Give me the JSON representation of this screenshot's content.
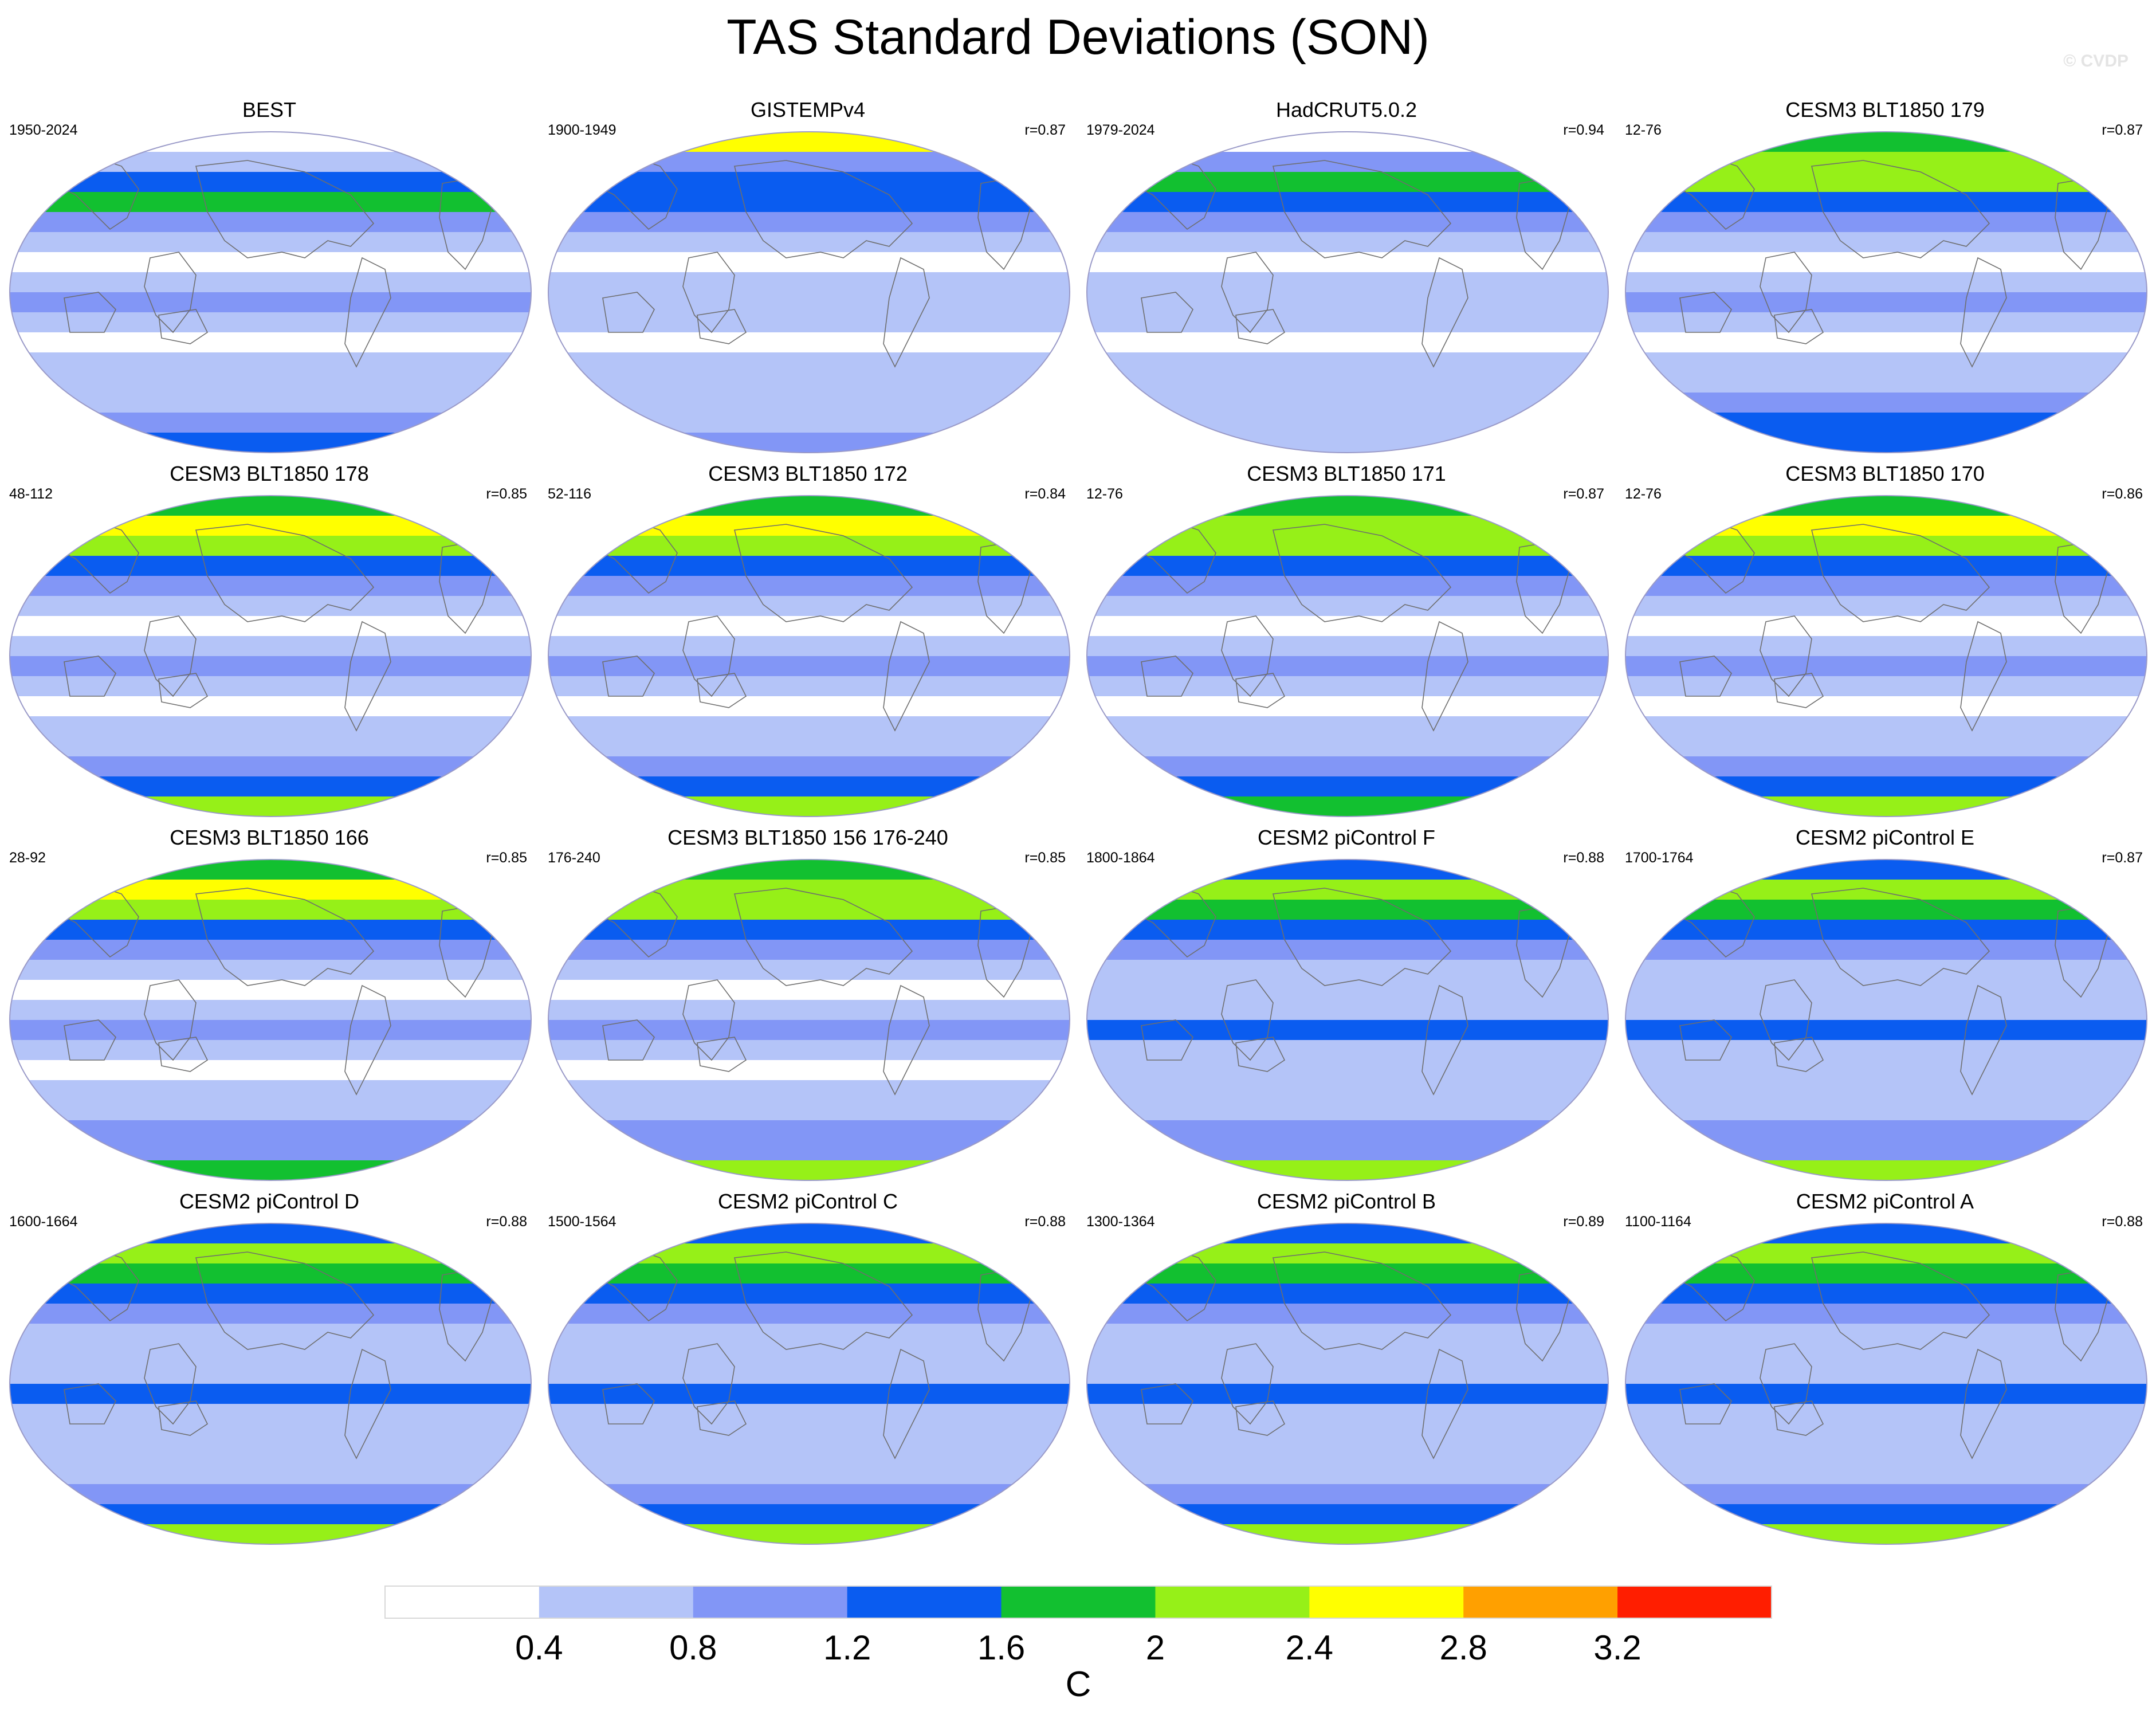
{
  "title": "TAS Standard Deviations (SON)",
  "watermark": "© CVDP",
  "colorbar": {
    "unit": "C",
    "ticks": [
      "0.4",
      "0.8",
      "1.2",
      "1.6",
      "2",
      "2.4",
      "2.8",
      "3.2"
    ],
    "colors": [
      "#ffffff",
      "#b4c4f8",
      "#8296f6",
      "#0a5cf0",
      "#12c030",
      "#96f018",
      "#ffff00",
      "#ffa000",
      "#ff1e00"
    ]
  },
  "continent_outline_color": "#6e6e6e",
  "panels": [
    {
      "title": "BEST",
      "period": "1950-2024",
      "correlation": "",
      "profile": [
        0.2,
        0.7,
        1.4,
        1.9,
        1.1,
        0.6,
        0.3,
        0.5,
        0.8,
        0.6,
        0.3,
        0.4,
        0.4,
        0.7,
        1.0,
        1.3
      ]
    },
    {
      "title": "GISTEMPv4",
      "period": "1900-1949",
      "correlation": "r=0.87",
      "profile": [
        2.6,
        1.1,
        1.3,
        1.3,
        0.9,
        0.5,
        0.3,
        0.5,
        0.7,
        0.5,
        0.3,
        0.4,
        0.4,
        0.5,
        0.6,
        1.2
      ]
    },
    {
      "title": "HadCRUT5.0.2",
      "period": "1979-2024",
      "correlation": "r=0.94",
      "profile": [
        0.3,
        1.0,
        1.6,
        1.4,
        1.0,
        0.6,
        0.3,
        0.5,
        0.7,
        0.5,
        0.3,
        0.4,
        0.4,
        0.5,
        0.5,
        0.4
      ]
    },
    {
      "title": "CESM3 BLT1850 179",
      "period": "12-76",
      "correlation": "r=0.87",
      "profile": [
        1.6,
        2.3,
        2.0,
        1.5,
        1.1,
        0.6,
        0.3,
        0.5,
        1.0,
        0.6,
        0.3,
        0.4,
        0.5,
        0.9,
        1.3,
        1.4
      ]
    },
    {
      "title": "CESM3 BLT1850 178",
      "period": "48-112",
      "correlation": "r=0.85",
      "profile": [
        1.7,
        2.5,
        2.1,
        1.5,
        1.1,
        0.6,
        0.3,
        0.5,
        1.0,
        0.6,
        0.3,
        0.4,
        0.6,
        0.9,
        1.3,
        2.0
      ]
    },
    {
      "title": "CESM3 BLT1850 172",
      "period": "52-116",
      "correlation": "r=0.84",
      "profile": [
        1.7,
        2.6,
        2.1,
        1.5,
        1.1,
        0.6,
        0.3,
        0.5,
        1.0,
        0.6,
        0.3,
        0.4,
        0.6,
        0.9,
        1.3,
        2.2
      ]
    },
    {
      "title": "CESM3 BLT1850 171",
      "period": "12-76",
      "correlation": "r=0.87",
      "profile": [
        1.7,
        2.4,
        2.1,
        1.5,
        1.1,
        0.6,
        0.3,
        0.5,
        1.0,
        0.6,
        0.3,
        0.4,
        0.6,
        0.9,
        1.3,
        1.9
      ]
    },
    {
      "title": "CESM3 BLT1850 170",
      "period": "12-76",
      "correlation": "r=0.86",
      "profile": [
        1.8,
        2.5,
        2.1,
        1.5,
        1.1,
        0.6,
        0.3,
        0.5,
        1.0,
        0.6,
        0.3,
        0.4,
        0.6,
        0.9,
        1.3,
        2.1
      ]
    },
    {
      "title": "CESM3 BLT1850 166",
      "period": "28-92",
      "correlation": "r=0.85",
      "profile": [
        1.7,
        2.6,
        2.0,
        1.5,
        1.1,
        0.6,
        0.3,
        0.5,
        1.0,
        0.6,
        0.3,
        0.4,
        0.5,
        0.9,
        1.1,
        1.9
      ]
    },
    {
      "title": "CESM3 BLT1850 156 176-240",
      "period": "176-240",
      "correlation": "r=0.85",
      "profile": [
        1.7,
        2.4,
        2.0,
        1.5,
        1.1,
        0.6,
        0.3,
        0.5,
        1.0,
        0.6,
        0.3,
        0.4,
        0.5,
        0.9,
        1.1,
        2.0
      ]
    },
    {
      "title": "CESM2 piControl F",
      "period": "1800-1864",
      "correlation": "r=0.88",
      "profile": [
        1.5,
        2.2,
        1.9,
        1.4,
        1.0,
        0.6,
        0.4,
        0.6,
        1.3,
        0.7,
        0.4,
        0.4,
        0.5,
        0.8,
        1.1,
        2.0
      ]
    },
    {
      "title": "CESM2 piControl E",
      "period": "1700-1764",
      "correlation": "r=0.87",
      "profile": [
        1.5,
        2.2,
        1.9,
        1.4,
        1.0,
        0.6,
        0.4,
        0.6,
        1.3,
        0.7,
        0.4,
        0.4,
        0.5,
        0.8,
        1.1,
        2.0
      ]
    },
    {
      "title": "CESM2 piControl D",
      "period": "1600-1664",
      "correlation": "r=0.88",
      "profile": [
        1.5,
        2.3,
        1.9,
        1.4,
        1.0,
        0.6,
        0.4,
        0.6,
        1.3,
        0.7,
        0.4,
        0.4,
        0.5,
        0.8,
        1.3,
        2.1
      ]
    },
    {
      "title": "CESM2 piControl C",
      "period": "1500-1564",
      "correlation": "r=0.88",
      "profile": [
        1.5,
        2.2,
        1.9,
        1.4,
        1.0,
        0.6,
        0.4,
        0.6,
        1.3,
        0.7,
        0.4,
        0.4,
        0.5,
        0.8,
        1.3,
        2.0
      ]
    },
    {
      "title": "CESM2 piControl B",
      "period": "1300-1364",
      "correlation": "r=0.89",
      "profile": [
        1.5,
        2.3,
        1.9,
        1.4,
        1.0,
        0.6,
        0.4,
        0.6,
        1.3,
        0.7,
        0.4,
        0.4,
        0.5,
        0.8,
        1.3,
        2.1
      ]
    },
    {
      "title": "CESM2 piControl A",
      "period": "1100-1164",
      "correlation": "r=0.88",
      "profile": [
        1.5,
        2.2,
        1.9,
        1.4,
        1.0,
        0.6,
        0.4,
        0.6,
        1.3,
        0.7,
        0.4,
        0.4,
        0.5,
        0.8,
        1.3,
        2.0
      ]
    }
  ]
}
